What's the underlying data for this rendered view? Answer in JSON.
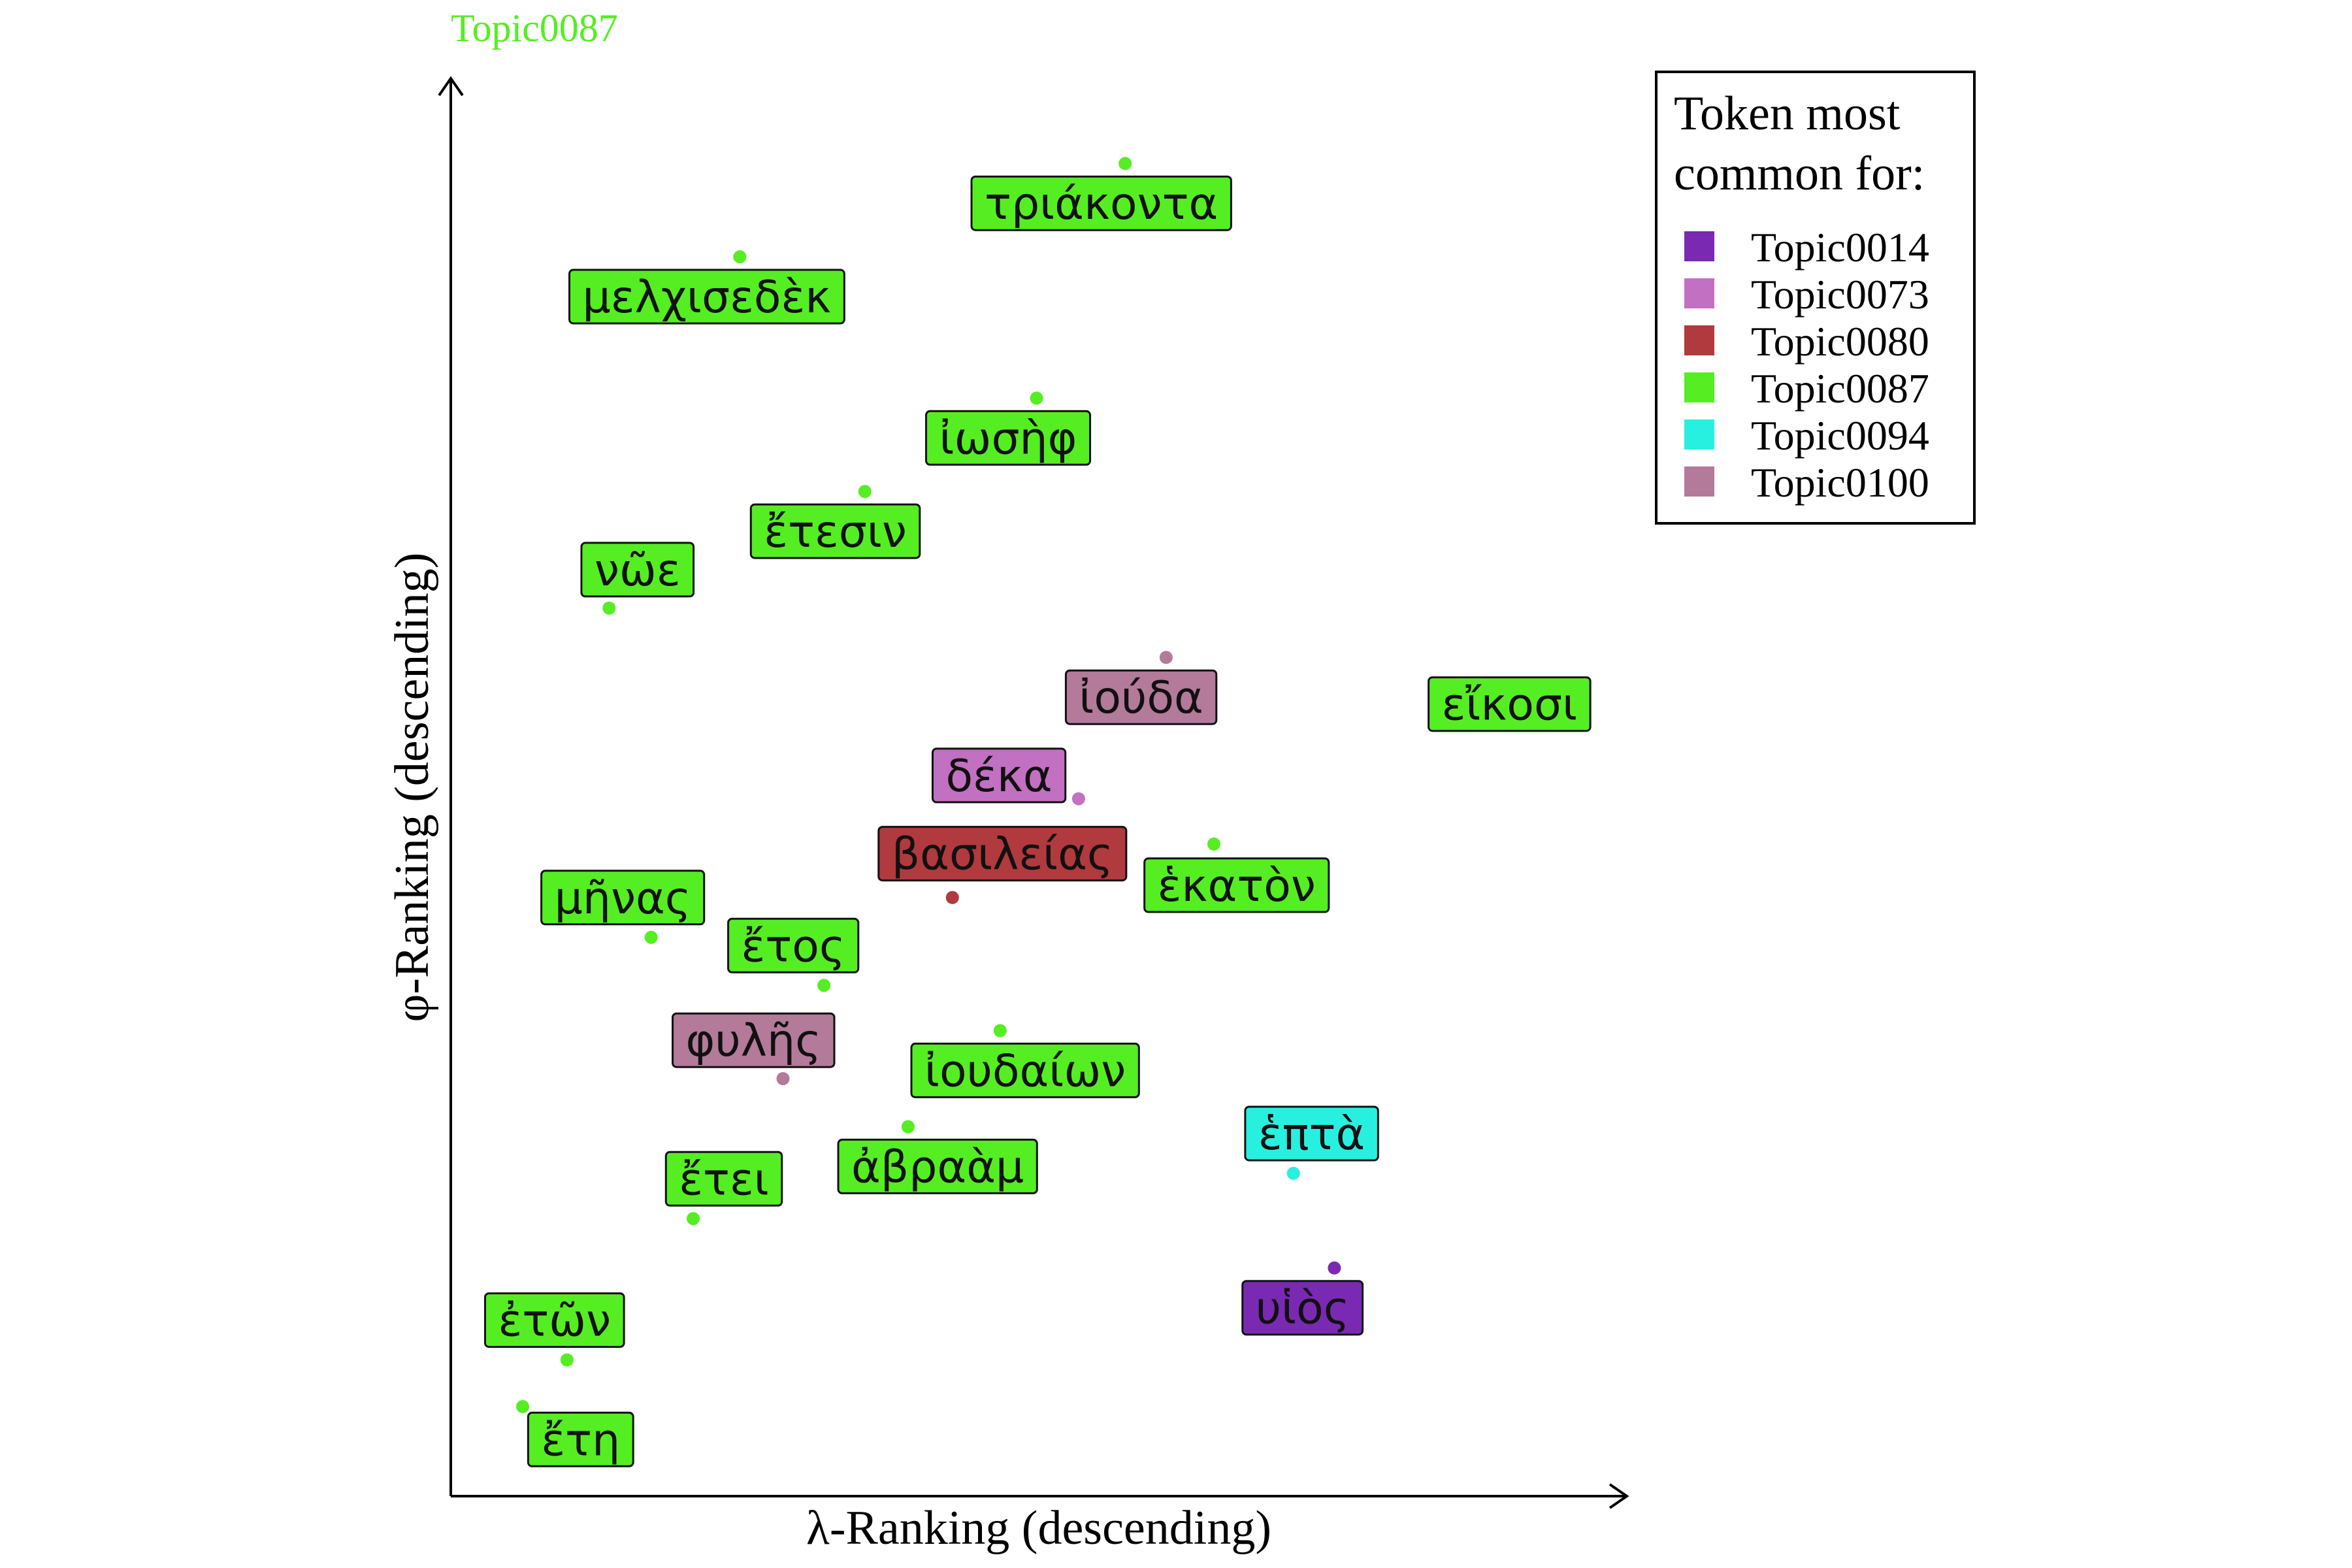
{
  "chart_data": {
    "type": "scatter",
    "title": "Topic0087",
    "title_color": "#55ee22",
    "xlabel": "λ-Ranking (descending)",
    "ylabel": "φ-Ranking (descending)",
    "xlim": [
      0,
      100
    ],
    "ylim": [
      0,
      100
    ],
    "grid": false,
    "legend": {
      "title_lines": [
        "Token most",
        "common for:"
      ],
      "placement": "top-right",
      "entries": [
        {
          "name": "Topic0014",
          "color": "#7a29b3"
        },
        {
          "name": "Topic0073",
          "color": "#c270c2"
        },
        {
          "name": "Topic0080",
          "color": "#b03a3e"
        },
        {
          "name": "Topic0087",
          "color": "#55ee22"
        },
        {
          "name": "Topic0094",
          "color": "#28f0e0"
        },
        {
          "name": "Topic0100",
          "color": "#b37a9a"
        }
      ]
    },
    "points": [
      {
        "label": "τριάκοντα",
        "topic": "Topic0087",
        "x": 57.6,
        "y": 95.7,
        "label_x": 55.5,
        "label_y": 92.8
      },
      {
        "label": "μελχισεδὲκ",
        "topic": "Topic0087",
        "x": 23.7,
        "y": 88.9,
        "label_x": 20.8,
        "label_y": 86.0
      },
      {
        "label": "ἰωσὴφ",
        "topic": "Topic0087",
        "x": 49.8,
        "y": 78.6,
        "label_x": 47.3,
        "label_y": 75.7
      },
      {
        "label": "ἔτεσιν",
        "topic": "Topic0087",
        "x": 34.7,
        "y": 71.8,
        "label_x": 32.1,
        "label_y": 68.9
      },
      {
        "label": "νῶε",
        "topic": "Topic0087",
        "x": 12.2,
        "y": 63.3,
        "label_x": 14.7,
        "label_y": 66.1
      },
      {
        "label": "ἰούδα",
        "topic": "Topic0100",
        "x": 61.2,
        "y": 59.7,
        "label_x": 59.0,
        "label_y": 56.8
      },
      {
        "label": "εἴκοσι",
        "topic": "Topic0087",
        "x": 95.6,
        "y": 56.7,
        "label_x": 91.4,
        "label_y": 56.3
      },
      {
        "label": "δέκα",
        "topic": "Topic0073",
        "x": 53.5,
        "y": 49.4,
        "label_x": 46.5,
        "label_y": 51.1
      },
      {
        "label": "βασιλείας",
        "topic": "Topic0080",
        "x": 42.4,
        "y": 42.2,
        "label_x": 46.8,
        "label_y": 45.4
      },
      {
        "label": "ἑκατὸν",
        "topic": "Topic0087",
        "x": 65.4,
        "y": 46.1,
        "label_x": 67.4,
        "label_y": 43.1
      },
      {
        "label": "μῆνας",
        "topic": "Topic0087",
        "x": 15.9,
        "y": 39.3,
        "label_x": 13.4,
        "label_y": 42.2
      },
      {
        "label": "ἔτος",
        "topic": "Topic0087",
        "x": 31.1,
        "y": 35.8,
        "label_x": 28.4,
        "label_y": 38.7
      },
      {
        "label": "φυλῆς",
        "topic": "Topic0100",
        "x": 27.5,
        "y": 29.0,
        "label_x": 24.9,
        "label_y": 31.8
      },
      {
        "label": "ἰουδαίων",
        "topic": "Topic0087",
        "x": 46.6,
        "y": 32.5,
        "label_x": 48.8,
        "label_y": 29.6
      },
      {
        "label": "ἑπτὰ",
        "topic": "Topic0094",
        "x": 72.4,
        "y": 22.1,
        "label_x": 74.0,
        "label_y": 25.0
      },
      {
        "label": "ἀβραὰμ",
        "topic": "Topic0087",
        "x": 38.5,
        "y": 25.5,
        "label_x": 41.1,
        "label_y": 22.6
      },
      {
        "label": "ἔτει",
        "topic": "Topic0087",
        "x": 19.6,
        "y": 18.8,
        "label_x": 22.3,
        "label_y": 21.7
      },
      {
        "label": "υἱὸς",
        "topic": "Topic0014",
        "x": 76.0,
        "y": 15.2,
        "label_x": 73.2,
        "label_y": 12.3
      },
      {
        "label": "ἐτῶν",
        "topic": "Topic0087",
        "x": 8.5,
        "y": 8.5,
        "label_x": 7.4,
        "label_y": 11.4
      },
      {
        "label": "ἔτη",
        "topic": "Topic0087",
        "x": 4.6,
        "y": 5.1,
        "label_x": 9.7,
        "label_y": 2.7
      }
    ]
  }
}
